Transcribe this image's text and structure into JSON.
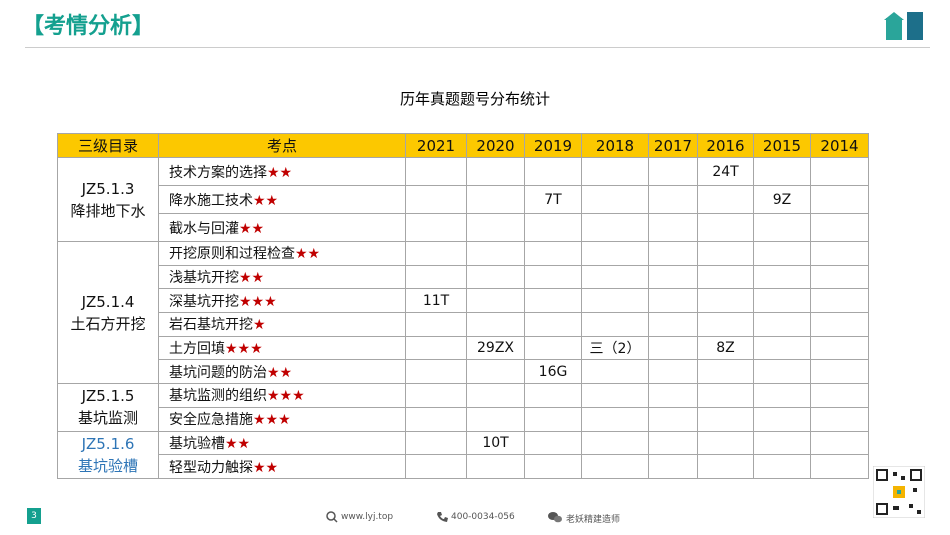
{
  "header": {
    "title": "【考情分析】"
  },
  "table": {
    "title": "历年真题题号分布统计",
    "columns": [
      "三级目录",
      "考点",
      "2021",
      "2020",
      "2019",
      "2018",
      "2017",
      "2016",
      "2015",
      "2014"
    ],
    "groups": [
      {
        "code": "JZ5.1.3",
        "name": "降排地下水",
        "rows": [
          {
            "topic": "技术方案的选择",
            "stars": "★★",
            "cells": [
              null,
              null,
              null,
              null,
              null,
              "24T",
              null,
              null
            ]
          },
          {
            "topic": "降水施工技术",
            "stars": "★★",
            "cells": [
              null,
              null,
              "7T",
              null,
              null,
              null,
              "9Z",
              null
            ]
          },
          {
            "topic": "截水与回灌",
            "stars": "★★",
            "cells": [
              null,
              null,
              null,
              null,
              null,
              null,
              null,
              null
            ]
          }
        ]
      },
      {
        "code": "JZ5.1.4",
        "name": "土石方开挖",
        "rows": [
          {
            "topic": "开挖原则和过程检查",
            "stars": "★★",
            "cells": [
              null,
              null,
              null,
              null,
              null,
              null,
              null,
              null
            ]
          },
          {
            "topic": "浅基坑开挖",
            "stars": "★★",
            "cells": [
              null,
              null,
              null,
              null,
              null,
              null,
              null,
              null
            ]
          },
          {
            "topic": "深基坑开挖",
            "stars": "★★★",
            "cells": [
              "11T",
              null,
              null,
              null,
              null,
              null,
              null,
              null
            ]
          },
          {
            "topic": "岩石基坑开挖",
            "stars": "★",
            "cells": [
              null,
              null,
              null,
              null,
              null,
              null,
              null,
              null
            ]
          },
          {
            "topic": "土方回填",
            "stars": "★★★",
            "cells": [
              null,
              "29ZX",
              null,
              "三（2）",
              null,
              "8Z",
              null,
              null
            ]
          },
          {
            "topic": "基坑问题的防治",
            "stars": "★★",
            "cells": [
              null,
              null,
              "16G",
              null,
              null,
              null,
              null,
              null
            ]
          }
        ]
      },
      {
        "code": "JZ5.1.5",
        "name": "基坑监测",
        "rows": [
          {
            "topic": "基坑监测的组织",
            "stars": "★★★",
            "cells": [
              null,
              null,
              null,
              null,
              null,
              null,
              null,
              null
            ]
          },
          {
            "topic": "安全应急措施",
            "stars": "★★★",
            "cells": [
              null,
              null,
              null,
              null,
              null,
              null,
              null,
              null
            ]
          }
        ]
      },
      {
        "code": "JZ5.1.6",
        "name": "基坑验槽",
        "color": "#2e75b6",
        "rows": [
          {
            "topic": "基坑验槽",
            "stars": "★★",
            "cells": [
              null,
              "10T",
              null,
              null,
              null,
              null,
              null,
              null
            ]
          },
          {
            "topic": "轻型动力触探",
            "stars": "★★",
            "cells": [
              null,
              null,
              null,
              null,
              null,
              null,
              null,
              null
            ]
          }
        ]
      }
    ]
  },
  "footer": {
    "page": "3",
    "website": "www.lyj.top",
    "phone": "400-0034-056",
    "wechat": "老妖精建造师"
  }
}
